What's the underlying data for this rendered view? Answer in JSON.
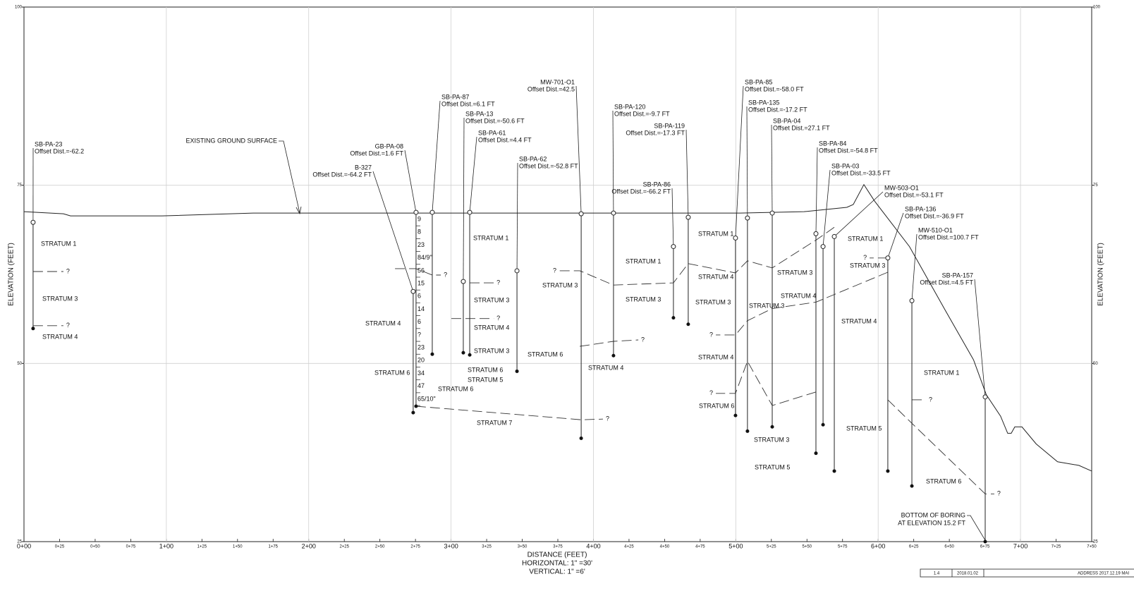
{
  "axes": {
    "xlim": [
      0,
      750
    ],
    "xticks": [
      {
        "value": 0,
        "label": "0+00"
      },
      {
        "value": 25,
        "label": "0+25"
      },
      {
        "value": 50,
        "label": "0+50"
      },
      {
        "value": 75,
        "label": "0+75"
      },
      {
        "value": 100,
        "label": "1+00"
      },
      {
        "value": 125,
        "label": "1+25"
      },
      {
        "value": 150,
        "label": "1+50"
      },
      {
        "value": 175,
        "label": "1+75"
      },
      {
        "value": 200,
        "label": "2+00"
      },
      {
        "value": 225,
        "label": "2+25"
      },
      {
        "value": 250,
        "label": "2+50"
      },
      {
        "value": 275,
        "label": "2+75"
      },
      {
        "value": 300,
        "label": "3+00"
      },
      {
        "value": 325,
        "label": "3+25"
      },
      {
        "value": 350,
        "label": "3+50"
      },
      {
        "value": 375,
        "label": "3+75"
      },
      {
        "value": 400,
        "label": "4+00"
      },
      {
        "value": 425,
        "label": "4+25"
      },
      {
        "value": 450,
        "label": "4+50"
      },
      {
        "value": 475,
        "label": "4+75"
      },
      {
        "value": 500,
        "label": "5+00"
      },
      {
        "value": 525,
        "label": "5+25"
      },
      {
        "value": 550,
        "label": "5+50"
      },
      {
        "value": 575,
        "label": "5+75"
      },
      {
        "value": 600,
        "label": "6+00"
      },
      {
        "value": 625,
        "label": "6+25"
      },
      {
        "value": 650,
        "label": "6+50"
      },
      {
        "value": 675,
        "label": "6+75"
      },
      {
        "value": 700,
        "label": "7+00"
      },
      {
        "value": 725,
        "label": "7+25"
      },
      {
        "value": 750,
        "label": "7+50"
      }
    ],
    "ylim": [
      25,
      100
    ],
    "yticks": [
      25,
      50,
      75,
      100
    ],
    "grid": true,
    "x_label": "DISTANCE (FEET)",
    "x_scale_horizontal": "HORIZONTAL: 1\" =30'",
    "x_scale_vertical": "VERTICAL: 1\" =6'",
    "y_label": "ELEVATION (FEET)"
  },
  "ground_surface": {
    "stations": [
      0,
      27.7,
      32.7,
      97,
      161,
      275,
      503,
      548,
      578,
      582.5,
      590,
      597.4,
      622,
      647,
      667,
      676,
      686,
      691,
      693.5,
      696,
      701,
      711,
      726,
      741,
      750
    ],
    "elevations": [
      71.3,
      71.0,
      70.7,
      70.7,
      71.1,
      71.1,
      71.1,
      71.3,
      71.9,
      72.3,
      75.1,
      72.8,
      66.4,
      57.5,
      50.5,
      45.6,
      42.6,
      40.2,
      40.2,
      41.1,
      41.1,
      38.7,
      36.2,
      35.7,
      34.9
    ]
  },
  "borings": [
    {
      "name": "SB-PA-23",
      "offset": "Offset Dist.=-62.2",
      "station": 6.4,
      "top": 69.8,
      "bottom": 54.9
    },
    {
      "name": "B-327",
      "offset": "Offset Dist.=-64.2 FT",
      "station": 273.4,
      "top": 60.1,
      "bottom": 43.1
    },
    {
      "name": "GB-PA-08",
      "offset": "Offset Dist.=1.6 FT",
      "station": 275.4,
      "top": 71.2,
      "bottom": 44.0,
      "blows": [
        "9",
        "8",
        "23",
        "84/9\"",
        "56",
        "15",
        "6",
        "14",
        "6",
        "?",
        "23",
        "20",
        "34",
        "47",
        "65/10\""
      ]
    },
    {
      "name": "SB-PA-87",
      "offset": "Offset Dist.=6.1 FT",
      "station": 286.8,
      "top": 71.2,
      "bottom": 51.3
    },
    {
      "name": "SB-PA-13",
      "offset": "Offset Dist.=-50.6 FT",
      "station": 308.6,
      "top": 61.5,
      "bottom": 51.5
    },
    {
      "name": "SB-PA-61",
      "offset": "Offset Dist.=4.4 FT",
      "station": 313.1,
      "top": 71.2,
      "bottom": 51.2
    },
    {
      "name": "SB-PA-62",
      "offset": "Offset Dist.=-52.8 FT",
      "station": 346.3,
      "top": 63.0,
      "bottom": 48.9
    },
    {
      "name": "MW-701-O1",
      "offset": "Offset Dist.=42.5",
      "station": 391.4,
      "top": 71.0,
      "bottom": 39.5
    },
    {
      "name": "SB-PA-120",
      "offset": "Offset Dist.=-9.7 FT",
      "station": 414.1,
      "top": 71.1,
      "bottom": 51.1
    },
    {
      "name": "SB-PA-119",
      "offset": "Offset Dist.=-17.3 FT",
      "station": 466.6,
      "top": 70.5,
      "bottom": 55.5
    },
    {
      "name": "SB-PA-86",
      "offset": "Offset Dist.=-66.2 FT",
      "station": 456.2,
      "top": 66.4,
      "bottom": 56.4
    },
    {
      "name": "SB-PA-85",
      "offset": "Offset Dist.=-58.0 FT",
      "station": 499.8,
      "top": 67.6,
      "bottom": 42.7
    },
    {
      "name": "SB-PA-135",
      "offset": "Offset Dist.=-17.2 FT",
      "station": 508.2,
      "top": 70.4,
      "bottom": 40.5
    },
    {
      "name": "SB-PA-04",
      "offset": "Offset Dist.=27.1 FT",
      "station": 525.6,
      "top": 71.1,
      "bottom": 41.1
    },
    {
      "name": "SB-PA-84",
      "offset": "Offset Dist.=-54.8 FT",
      "station": 556.3,
      "top": 68.2,
      "bottom": 37.4
    },
    {
      "name": "SB-PA-03",
      "offset": "Offset Dist.=-33.5 FT",
      "station": 561.3,
      "top": 66.4,
      "bottom": 41.4
    },
    {
      "name": "MW-503-O1",
      "offset": "Offset Dist.=-53.1 FT",
      "station": 569.2,
      "top": 67.8,
      "bottom": 34.9
    },
    {
      "name": "SB-PA-136",
      "offset": "Offset Dist.=-36.9 FT",
      "station": 606.8,
      "top": 64.8,
      "bottom": 34.9
    },
    {
      "name": "MW-510-O1",
      "offset": "Offset Dist.=100.7 FT",
      "station": 623.7,
      "top": 58.8,
      "bottom": 32.8
    },
    {
      "name": "SB-PA-157",
      "offset": "Offset Dist.=4.5 FT",
      "station": 675.2,
      "top": 45.3,
      "bottom": 25.0
    }
  ],
  "contacts": [
    {
      "stations": [
        6.4,
        27.7
      ],
      "elevations": [
        62.9,
        62.9
      ],
      "label": "?"
    },
    {
      "stations": [
        6.4,
        27.7
      ],
      "elevations": [
        55.3,
        55.3
      ],
      "label": "?"
    },
    {
      "stations": [
        569.2,
        556.3,
        525.6,
        508.2,
        499.8,
        466.6,
        456.2,
        414.1,
        390.4,
        376.0
      ],
      "elevations": [
        69.1,
        67.3,
        63.4,
        64.4,
        62.7,
        64.0,
        61.3,
        61.0,
        63.0,
        63.0
      ],
      "label": "?"
    },
    {
      "stations": [
        390.4,
        414.1,
        431.5
      ],
      "elevations": [
        52.4,
        53.1,
        53.3
      ],
      "label": "?"
    },
    {
      "stations": [
        275.4,
        391.4,
        406.7
      ],
      "elevations": [
        44.0,
        42.1,
        42.2
      ],
      "label": "?"
    },
    {
      "stations": [
        606.8,
        556.3,
        525.6,
        508.2,
        499.8,
        486.0
      ],
      "elevations": [
        62.8,
        58.6,
        57.7,
        56.0,
        54.0,
        54.0
      ],
      "label": "?"
    },
    {
      "stations": [
        556.3,
        525.6,
        508.2,
        499.8,
        486.0
      ],
      "elevations": [
        46.0,
        44.1,
        50.3,
        45.8,
        45.8
      ],
      "label": "?"
    },
    {
      "stations": [
        606.8,
        623.7,
        675.2,
        681.6
      ],
      "elevations": [
        44.9,
        41.6,
        31.7,
        31.7
      ],
      "label": "?"
    },
    {
      "stations": [
        260.6,
        275.4,
        286.8,
        292.8
      ],
      "elevations": [
        63.3,
        63.3,
        62.4,
        62.4
      ],
      "label": "?"
    },
    {
      "stations": [
        623.7,
        633.6
      ],
      "elevations": [
        44.9,
        44.9
      ],
      "label": "?"
    },
    {
      "stations": [
        606.8,
        594.0
      ],
      "elevations": [
        64.8,
        64.8
      ],
      "label": "?"
    },
    {
      "stations": [
        313.1,
        330.0
      ],
      "elevations": [
        61.3,
        61.3
      ],
      "label": "?"
    },
    {
      "stations": [
        300.2,
        313.1,
        330.0
      ],
      "elevations": [
        56.3,
        56.3,
        56.3
      ],
      "label": "?"
    }
  ],
  "strata_labels": [
    "STRATUM 1",
    "STRATUM 3",
    "STRATUM 4",
    "STRATUM 4",
    "STRATUM 6",
    "STRATUM 6",
    "STRATUM 1",
    "STRATUM 3",
    "STRATUM 4",
    "STRATUM 3",
    "STRATUM 6",
    "STRATUM 5",
    "STRATUM 7",
    "STRATUM 3",
    "STRATUM 6",
    "STRATUM 1",
    "STRATUM 3",
    "STRATUM 4",
    "STRATUM 1",
    "STRATUM 4",
    "STRATUM 3",
    "STRATUM 4",
    "STRATUM 6",
    "STRATUM 3",
    "STRATUM 4",
    "STRATUM 3",
    "STRATUM 1",
    "STRATUM 3",
    "STRATUM 4",
    "STRATUM 3",
    "STRATUM 5",
    "STRATUM 5",
    "STRATUM 1",
    "STRATUM 6"
  ],
  "annotations": {
    "ground_surface": "EXISTING GROUND SURFACE",
    "bottom_of_boring": [
      "BOTTOM OF BORING",
      "AT ELEVATION 15.2 FT"
    ]
  },
  "title_block": {
    "revision": "1.4",
    "date": "2018.01.02",
    "description": "ADDRESS 2017.12.19 MAI"
  }
}
